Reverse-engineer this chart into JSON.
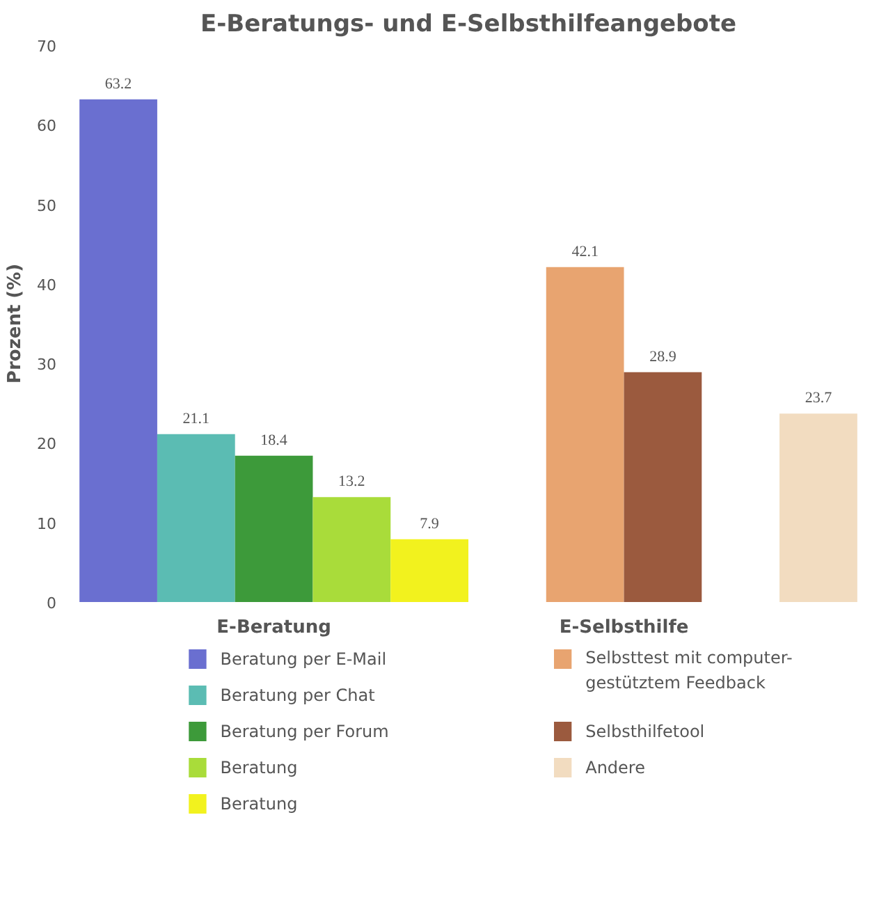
{
  "chart_data": {
    "type": "bar",
    "title": "E-Beratungs- und E-Selbsthilfeangebote",
    "ylabel": "Prozent (%)",
    "categories": [
      "E-Beratung",
      "E-Selbsthilfe",
      null
    ],
    "series": [
      {
        "name": "Beratung per E-Mail",
        "color": "#6a6fd0",
        "values": [
          63.2,
          null,
          null
        ]
      },
      {
        "name": "Beratung per Chat",
        "color": "#5bbcb3",
        "values": [
          21.1,
          null,
          null
        ]
      },
      {
        "name": "Beratung per Forum",
        "color": "#3d9a3a",
        "values": [
          18.4,
          null,
          null
        ]
      },
      {
        "name": "Beratung",
        "color": "#a9dc3a",
        "values": [
          13.2,
          null,
          null
        ]
      },
      {
        "name": "Beratung",
        "color": "#f2f21e",
        "values": [
          7.9,
          null,
          null
        ]
      },
      {
        "name": "Selbsttest mit computer-gestütztem Feedback",
        "color": "#e8a470",
        "values": [
          null,
          42.1,
          null
        ]
      },
      {
        "name": "Selbsthilfetool",
        "color": "#9b5a3e",
        "values": [
          null,
          28.9,
          null
        ]
      },
      {
        "name": "Andere",
        "color": "#f2dcc0",
        "values": [
          null,
          null,
          23.7
        ]
      }
    ],
    "ylim": [
      0,
      70
    ],
    "yticks": [
      0,
      10,
      20,
      30,
      40,
      50,
      60,
      70
    ],
    "data_labels": true,
    "legend": "bottom"
  }
}
